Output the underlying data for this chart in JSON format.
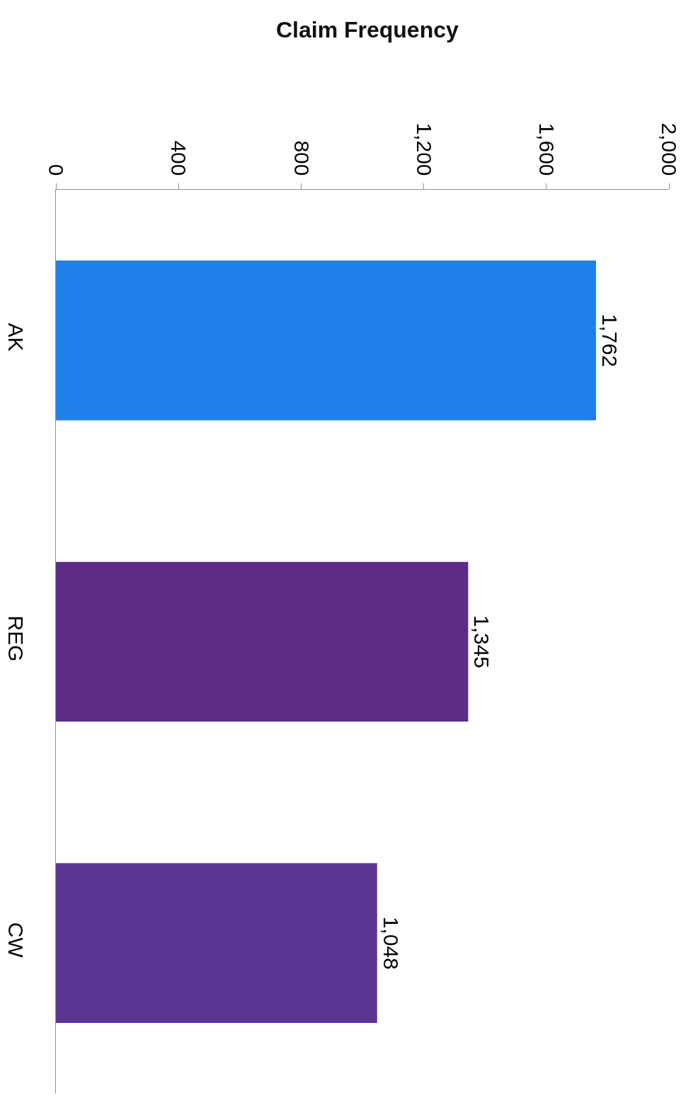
{
  "chart_data": {
    "type": "bar",
    "title": "Claim Frequency",
    "orientation": "horizontal",
    "categories": [
      "AK",
      "REG",
      "CW"
    ],
    "values": [
      1762,
      1345,
      1048
    ],
    "colors": [
      "#1f80ea",
      "#5b2b86",
      "#5c3592"
    ],
    "xlim": [
      0,
      2000
    ],
    "xticks": [
      0,
      400,
      800,
      {
        "value": 1200,
        "label": "1,200"
      },
      {
        "value": 1600,
        "label": "1,600"
      },
      {
        "value": 2000,
        "label": "2,000"
      }
    ],
    "value_labels": [
      "1,762",
      "1,345",
      "1,048"
    ],
    "legend": false
  }
}
